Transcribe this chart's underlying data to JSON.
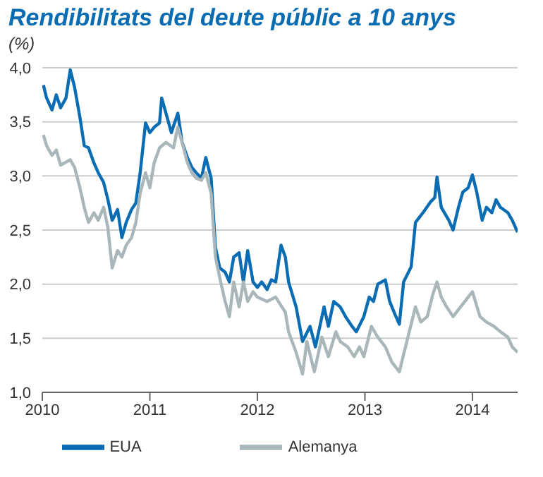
{
  "chart_data": {
    "type": "line",
    "title": "Rendibilitats del deute públic a 10 anys",
    "subtitle": "(%)",
    "xlim": [
      2010,
      2014.42
    ],
    "xticks": [
      2010,
      2011,
      2012,
      2013,
      2014
    ],
    "ylim": [
      1,
      4
    ],
    "yticks": [
      {
        "value": 1,
        "label": "1,0"
      },
      {
        "value": 1.5,
        "label": "1,5"
      },
      {
        "value": 2,
        "label": "2,0"
      },
      {
        "value": 2.5,
        "label": "2,5"
      },
      {
        "value": 3,
        "label": "3,0"
      },
      {
        "value": 3.5,
        "label": "3,5"
      },
      {
        "value": 4,
        "label": "4,0"
      }
    ],
    "grid": "y",
    "legend": "bottom",
    "marker": "none",
    "line_style": "solid",
    "series": [
      {
        "name": "EUA",
        "color": "#0a6db3",
        "x": [
          2010.01,
          2010.04,
          2010.09,
          2010.13,
          2010.17,
          2010.22,
          2010.26,
          2010.3,
          2010.35,
          2010.39,
          2010.43,
          2010.48,
          2010.52,
          2010.57,
          2010.61,
          2010.65,
          2010.7,
          2010.74,
          2010.78,
          2010.83,
          2010.87,
          2010.91,
          2010.96,
          2011.0,
          2011.04,
          2011.09,
          2011.11,
          2011.15,
          2011.2,
          2011.26,
          2011.3,
          2011.35,
          2011.39,
          2011.43,
          2011.48,
          2011.52,
          2011.57,
          2011.61,
          2011.65,
          2011.7,
          2011.74,
          2011.78,
          2011.83,
          2011.87,
          2011.91,
          2011.96,
          2012.0,
          2012.04,
          2012.09,
          2012.13,
          2012.17,
          2012.22,
          2012.26,
          2012.29,
          2012.36,
          2012.42,
          2012.49,
          2012.54,
          2012.62,
          2012.66,
          2012.71,
          2012.77,
          2012.82,
          2012.88,
          2012.92,
          2012.99,
          2013.04,
          2013.08,
          2013.12,
          2013.19,
          2013.23,
          2013.28,
          2013.32,
          2013.36,
          2013.43,
          2013.47,
          2013.54,
          2013.61,
          2013.65,
          2013.67,
          2013.71,
          2013.78,
          2013.82,
          2013.87,
          2013.91,
          2013.96,
          2014.0,
          2014.04,
          2014.09,
          2014.13,
          2014.18,
          2014.22,
          2014.26,
          2014.33,
          2014.37,
          2014.42
        ],
        "values": [
          3.84,
          3.72,
          3.61,
          3.75,
          3.63,
          3.72,
          3.98,
          3.82,
          3.54,
          3.28,
          3.26,
          3.12,
          3.03,
          2.94,
          2.78,
          2.59,
          2.69,
          2.43,
          2.57,
          2.69,
          2.75,
          3.03,
          3.49,
          3.4,
          3.45,
          3.49,
          3.72,
          3.58,
          3.4,
          3.58,
          3.31,
          3.17,
          3.08,
          3.03,
          2.98,
          3.17,
          2.98,
          2.34,
          2.15,
          2.11,
          2.02,
          2.25,
          2.29,
          2.02,
          2.31,
          2.02,
          1.97,
          2.02,
          1.95,
          2.04,
          2.02,
          2.36,
          2.25,
          2.02,
          1.79,
          1.47,
          1.61,
          1.42,
          1.79,
          1.61,
          1.84,
          1.79,
          1.7,
          1.61,
          1.56,
          1.7,
          1.88,
          1.84,
          2.0,
          2.04,
          1.84,
          1.72,
          1.63,
          2.02,
          2.16,
          2.57,
          2.66,
          2.76,
          2.8,
          2.99,
          2.71,
          2.59,
          2.5,
          2.71,
          2.85,
          2.89,
          3.01,
          2.85,
          2.59,
          2.71,
          2.66,
          2.78,
          2.71,
          2.66,
          2.59,
          2.48
        ]
      },
      {
        "name": "Alemanya",
        "color": "#a9b7bb",
        "x": [
          2010.01,
          2010.04,
          2010.09,
          2010.13,
          2010.17,
          2010.26,
          2010.3,
          2010.35,
          2010.39,
          2010.43,
          2010.48,
          2010.52,
          2010.57,
          2010.61,
          2010.65,
          2010.7,
          2010.74,
          2010.78,
          2010.83,
          2010.87,
          2010.91,
          2010.96,
          2011.0,
          2011.04,
          2011.09,
          2011.15,
          2011.22,
          2011.26,
          2011.3,
          2011.35,
          2011.39,
          2011.43,
          2011.48,
          2011.52,
          2011.57,
          2011.61,
          2011.65,
          2011.7,
          2011.74,
          2011.78,
          2011.83,
          2011.87,
          2011.91,
          2011.96,
          2012.0,
          2012.09,
          2012.17,
          2012.26,
          2012.29,
          2012.36,
          2012.42,
          2012.46,
          2012.53,
          2012.6,
          2012.66,
          2012.73,
          2012.77,
          2012.84,
          2012.9,
          2012.95,
          2012.99,
          2013.06,
          2013.12,
          2013.19,
          2013.25,
          2013.32,
          2013.39,
          2013.47,
          2013.52,
          2013.58,
          2013.63,
          2013.67,
          2013.71,
          2013.76,
          2013.82,
          2013.89,
          2013.96,
          2014.0,
          2014.07,
          2014.13,
          2014.2,
          2014.26,
          2014.33,
          2014.37,
          2014.42
        ],
        "values": [
          3.38,
          3.28,
          3.19,
          3.24,
          3.1,
          3.15,
          3.08,
          2.89,
          2.71,
          2.57,
          2.66,
          2.59,
          2.71,
          2.52,
          2.15,
          2.31,
          2.25,
          2.36,
          2.43,
          2.57,
          2.84,
          3.03,
          2.89,
          3.12,
          3.26,
          3.31,
          3.26,
          3.45,
          3.31,
          3.12,
          3.03,
          2.98,
          2.96,
          3.03,
          2.84,
          2.25,
          2.06,
          1.84,
          1.7,
          2.02,
          1.79,
          2.02,
          1.84,
          1.93,
          1.88,
          1.84,
          1.88,
          1.74,
          1.56,
          1.37,
          1.17,
          1.47,
          1.19,
          1.51,
          1.33,
          1.56,
          1.47,
          1.42,
          1.33,
          1.42,
          1.33,
          1.61,
          1.51,
          1.42,
          1.28,
          1.19,
          1.47,
          1.79,
          1.65,
          1.7,
          1.9,
          2.02,
          1.88,
          1.79,
          1.7,
          1.79,
          1.88,
          1.93,
          1.7,
          1.65,
          1.61,
          1.56,
          1.51,
          1.42,
          1.37
        ]
      }
    ]
  }
}
